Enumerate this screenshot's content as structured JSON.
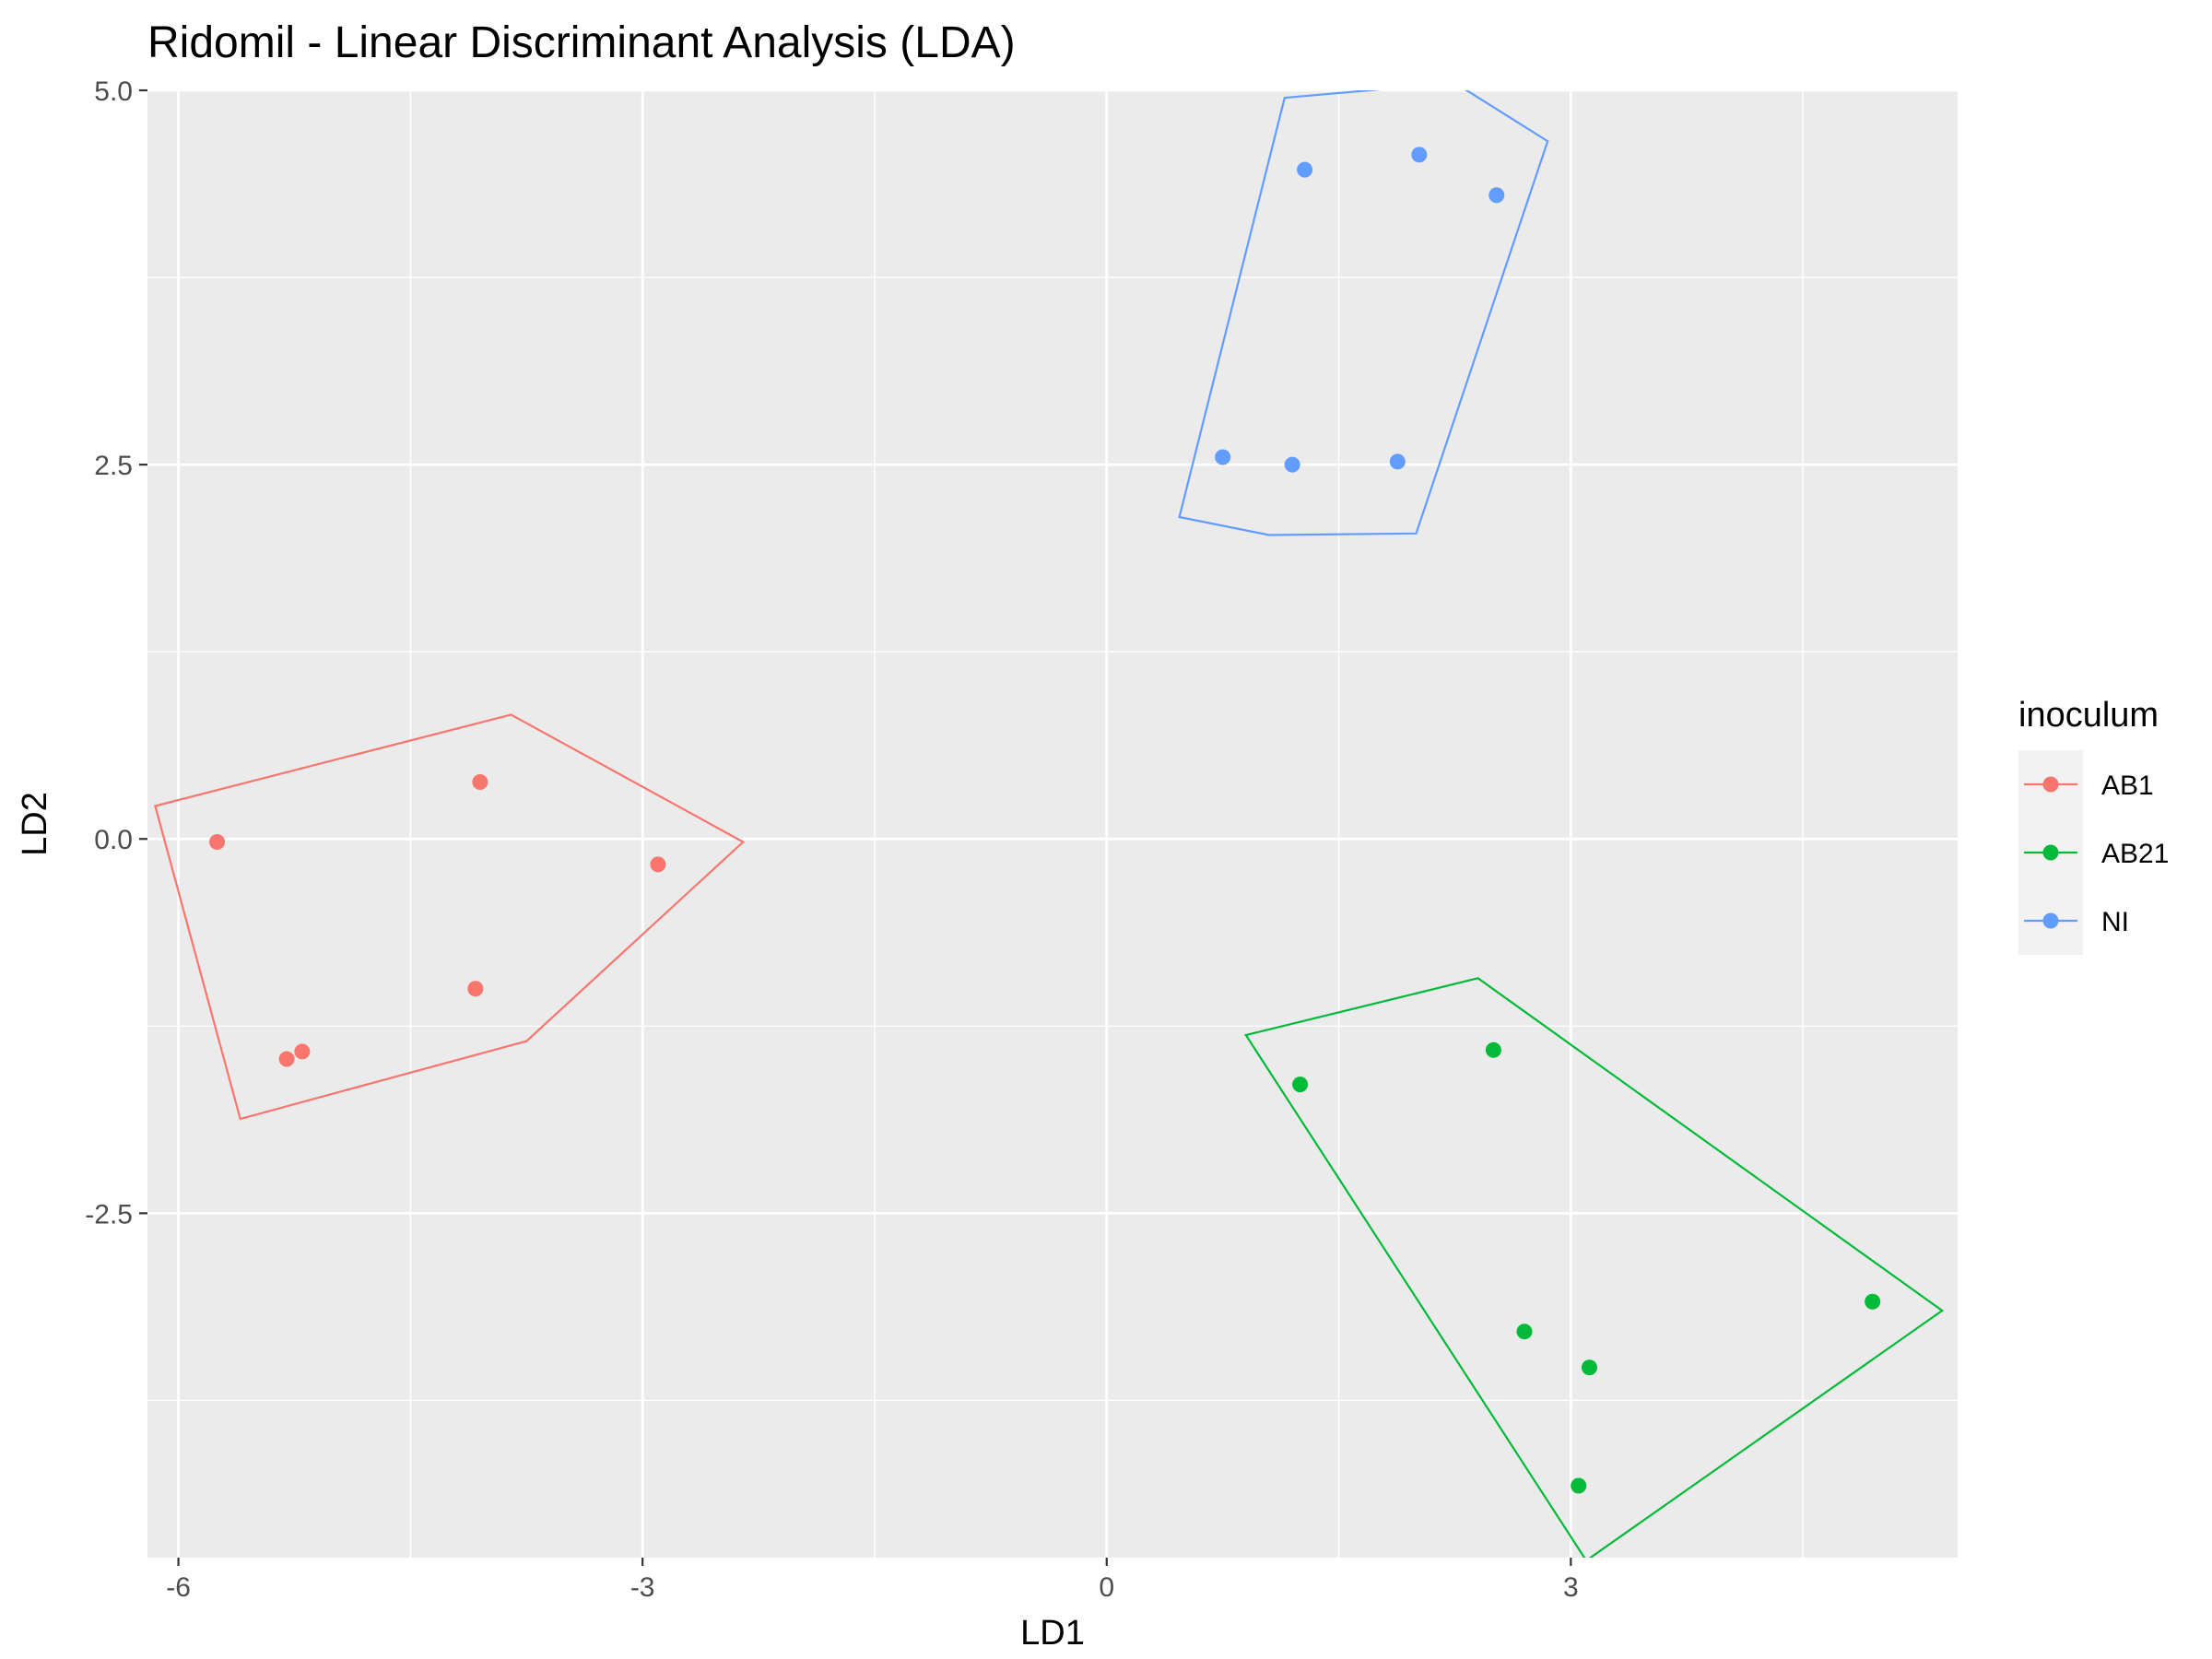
{
  "chart_data": {
    "type": "scatter",
    "title": "Ridomil - Linear Discriminant Analysis (LDA)",
    "xlabel": "LD1",
    "ylabel": "LD2",
    "xlim": [
      -6.2,
      5.5
    ],
    "ylim": [
      -4.8,
      5.0
    ],
    "x_ticks": [
      -6,
      -3,
      0,
      3
    ],
    "x_tick_labels": [
      "-6",
      "-3",
      "0",
      "3"
    ],
    "y_ticks": [
      -2.5,
      0.0,
      2.5,
      5.0
    ],
    "y_tick_labels": [
      "-2.5",
      "0.0",
      "2.5",
      "5.0"
    ],
    "grid": true,
    "legend": {
      "title": "inoculum",
      "position": "right"
    },
    "series": [
      {
        "name": "AB1",
        "color": "#F8766D",
        "points": [
          {
            "x": -5.75,
            "y": -0.02
          },
          {
            "x": -4.05,
            "y": 0.38
          },
          {
            "x": -2.9,
            "y": -0.17
          },
          {
            "x": -4.08,
            "y": -1.0
          },
          {
            "x": -5.3,
            "y": -1.47
          },
          {
            "x": -5.2,
            "y": -1.42
          }
        ],
        "hull": [
          {
            "x": -6.15,
            "y": 0.22
          },
          {
            "x": -3.85,
            "y": 0.83
          },
          {
            "x": -2.35,
            "y": -0.02
          },
          {
            "x": -3.75,
            "y": -1.35
          },
          {
            "x": -5.6,
            "y": -1.87
          }
        ]
      },
      {
        "name": "AB21",
        "color": "#00BA38",
        "points": [
          {
            "x": 1.25,
            "y": -1.64
          },
          {
            "x": 2.5,
            "y": -1.41
          },
          {
            "x": 2.7,
            "y": -3.29
          },
          {
            "x": 3.12,
            "y": -3.53
          },
          {
            "x": 4.95,
            "y": -3.09
          },
          {
            "x": 3.05,
            "y": -4.32
          }
        ],
        "hull": [
          {
            "x": 0.9,
            "y": -1.31
          },
          {
            "x": 2.4,
            "y": -0.93
          },
          {
            "x": 5.4,
            "y": -3.15
          },
          {
            "x": 3.1,
            "y": -4.82
          }
        ]
      },
      {
        "name": "NI",
        "color": "#619CFF",
        "points": [
          {
            "x": 1.28,
            "y": 4.47
          },
          {
            "x": 2.02,
            "y": 4.57
          },
          {
            "x": 2.52,
            "y": 4.3
          },
          {
            "x": 0.75,
            "y": 2.55
          },
          {
            "x": 1.2,
            "y": 2.5
          },
          {
            "x": 1.88,
            "y": 2.52
          }
        ],
        "hull": [
          {
            "x": 1.15,
            "y": 4.95
          },
          {
            "x": 2.25,
            "y": 5.05
          },
          {
            "x": 2.85,
            "y": 4.66
          },
          {
            "x": 2.0,
            "y": 2.04
          },
          {
            "x": 1.05,
            "y": 2.03
          },
          {
            "x": 0.47,
            "y": 2.15
          }
        ]
      }
    ]
  }
}
